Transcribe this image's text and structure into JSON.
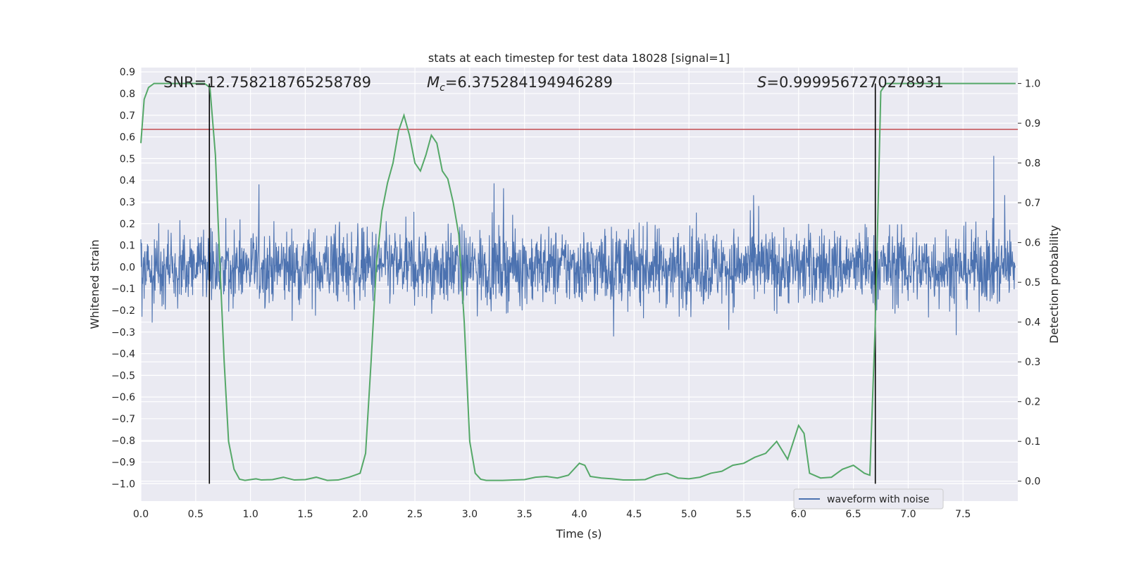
{
  "chart_data": {
    "type": "line",
    "title": "stats at each timestep for test data 18028 [signal=1]",
    "xlabel": "Time (s)",
    "ylabel": "Whitened strain",
    "y2label": "Detection probability",
    "xlim": [
      0.0,
      8.0
    ],
    "ylim": [
      -1.08,
      0.92
    ],
    "y2lim": [
      -0.05,
      1.04
    ],
    "xticks": [
      "0.0",
      "0.5",
      "1.0",
      "1.5",
      "2.0",
      "2.5",
      "3.0",
      "3.5",
      "4.0",
      "4.5",
      "5.0",
      "5.5",
      "6.0",
      "6.5",
      "7.0",
      "7.5"
    ],
    "yticks": [
      "0.9",
      "0.8",
      "0.7",
      "0.6",
      "0.5",
      "0.4",
      "0.3",
      "0.2",
      "0.1",
      "0.0",
      "−0.1",
      "−0.2",
      "−0.3",
      "−0.4",
      "−0.5",
      "−0.6",
      "−0.7",
      "−0.8",
      "−0.9",
      "−1.0"
    ],
    "y2ticks": [
      "0.0",
      "0.1",
      "0.2",
      "0.3",
      "0.4",
      "0.5",
      "0.6",
      "0.7",
      "0.8",
      "0.9",
      "1.0"
    ],
    "annotations": {
      "snr": "SNR=12.758218765258789",
      "mc_symbol": "M",
      "mc_sub": "c",
      "mc_value": "=6.375284194946289",
      "s_symbol": "S",
      "s_value": "=0.9999567270278931"
    },
    "threshold_strain": 0.635,
    "vlines_time": [
      0.625,
      6.7
    ],
    "legend": {
      "entries": [
        "waveform with noise"
      ],
      "placement": "lower-right"
    },
    "series": [
      {
        "name": "waveform with noise",
        "axis": "left",
        "color": "#4c72b0",
        "kind": "noise",
        "envelope": 0.45,
        "samples": 2400
      },
      {
        "name": "detection probability",
        "axis": "right",
        "color": "#55a868",
        "x": [
          0.0,
          0.03,
          0.07,
          0.12,
          0.2,
          0.3,
          0.4,
          0.5,
          0.58,
          0.63,
          0.68,
          0.72,
          0.76,
          0.8,
          0.85,
          0.9,
          0.95,
          1.0,
          1.05,
          1.1,
          1.2,
          1.3,
          1.4,
          1.5,
          1.6,
          1.7,
          1.8,
          1.9,
          2.0,
          2.05,
          2.1,
          2.15,
          2.2,
          2.25,
          2.3,
          2.35,
          2.4,
          2.45,
          2.5,
          2.55,
          2.6,
          2.65,
          2.7,
          2.75,
          2.8,
          2.85,
          2.9,
          2.95,
          3.0,
          3.05,
          3.1,
          3.15,
          3.2,
          3.3,
          3.4,
          3.5,
          3.6,
          3.7,
          3.8,
          3.9,
          4.0,
          4.05,
          4.1,
          4.2,
          4.3,
          4.4,
          4.5,
          4.6,
          4.7,
          4.8,
          4.9,
          5.0,
          5.1,
          5.2,
          5.3,
          5.4,
          5.5,
          5.6,
          5.7,
          5.8,
          5.9,
          6.0,
          6.05,
          6.1,
          6.2,
          6.3,
          6.4,
          6.5,
          6.6,
          6.65,
          6.7,
          6.75,
          6.8,
          6.9,
          7.0,
          7.5,
          7.98
        ],
        "values": [
          0.85,
          0.96,
          0.99,
          1.0,
          1.0,
          1.0,
          1.0,
          1.0,
          1.0,
          0.99,
          0.82,
          0.55,
          0.3,
          0.1,
          0.03,
          0.005,
          0.002,
          0.004,
          0.006,
          0.003,
          0.004,
          0.01,
          0.003,
          0.004,
          0.01,
          0.002,
          0.003,
          0.01,
          0.02,
          0.07,
          0.3,
          0.55,
          0.68,
          0.75,
          0.8,
          0.88,
          0.92,
          0.87,
          0.8,
          0.78,
          0.82,
          0.87,
          0.85,
          0.78,
          0.76,
          0.7,
          0.62,
          0.4,
          0.1,
          0.02,
          0.005,
          0.002,
          0.002,
          0.002,
          0.003,
          0.004,
          0.01,
          0.012,
          0.008,
          0.015,
          0.045,
          0.04,
          0.012,
          0.008,
          0.006,
          0.003,
          0.003,
          0.004,
          0.015,
          0.02,
          0.008,
          0.006,
          0.01,
          0.02,
          0.025,
          0.04,
          0.045,
          0.06,
          0.07,
          0.1,
          0.055,
          0.14,
          0.12,
          0.02,
          0.008,
          0.01,
          0.03,
          0.04,
          0.02,
          0.015,
          0.4,
          0.98,
          1.0,
          1.0,
          1.0,
          1.0,
          1.0
        ]
      }
    ]
  }
}
